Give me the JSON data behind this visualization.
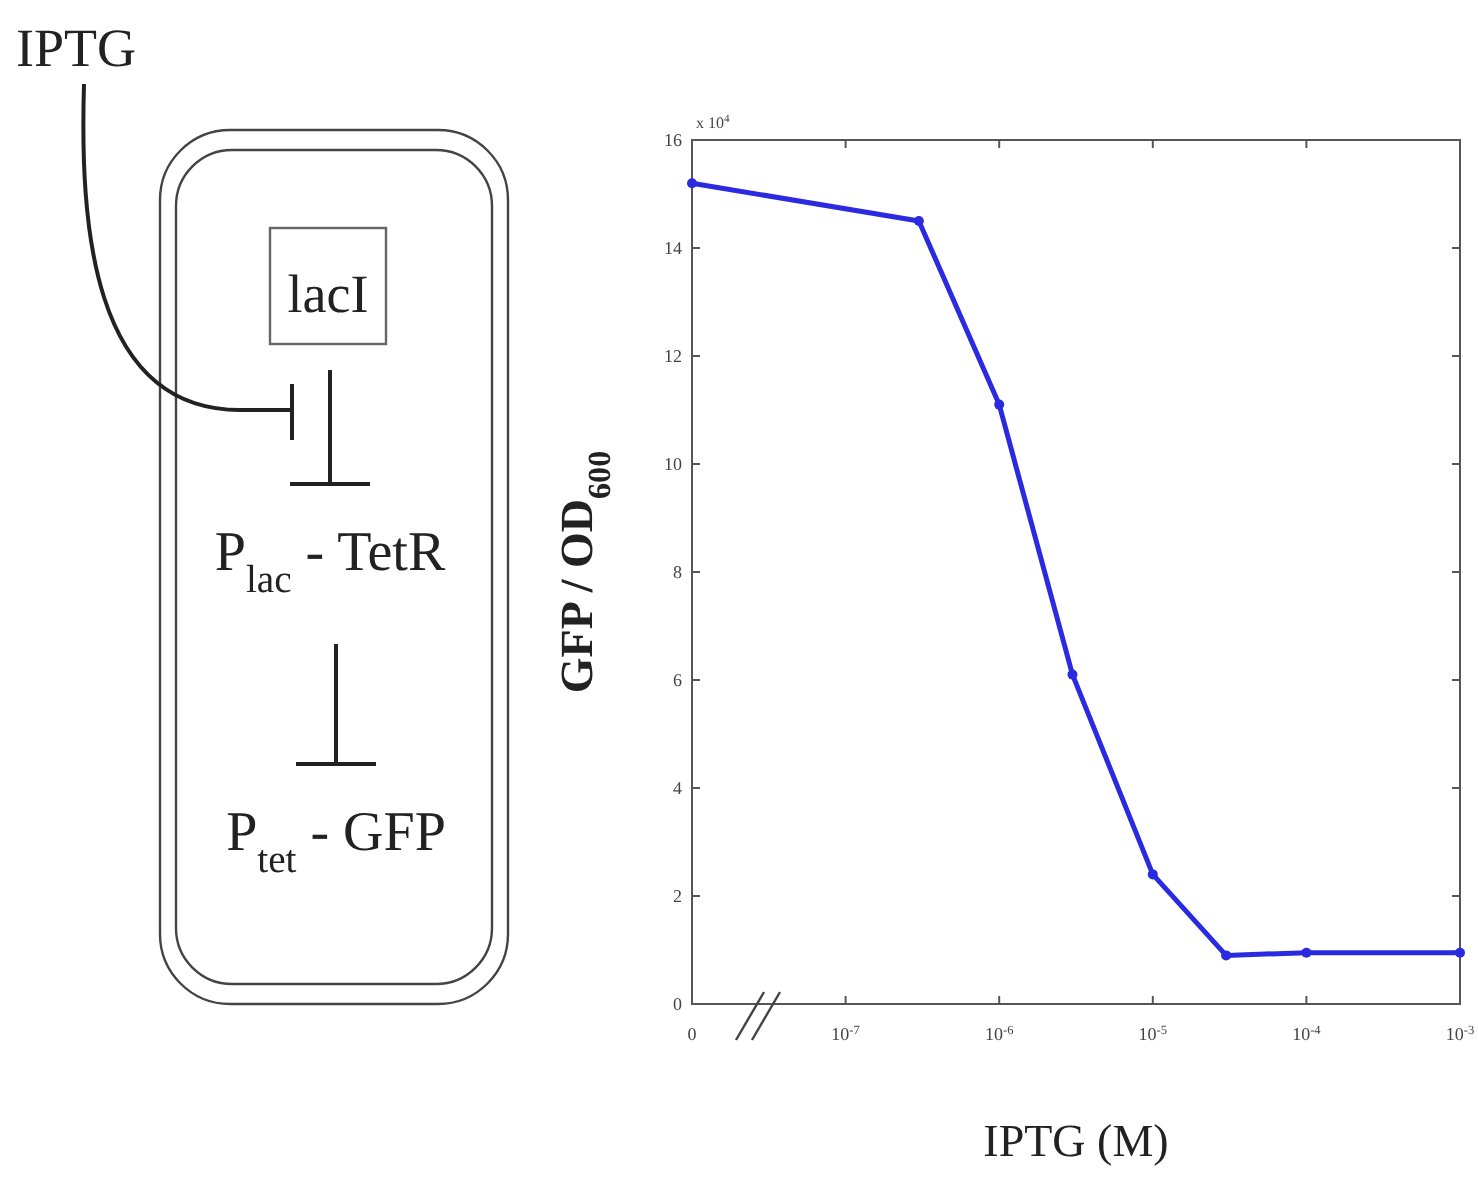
{
  "chart_data": {
    "type": "line",
    "xlabel": "IPTG (M)",
    "ylabel": "GFP / OD$_{600}$",
    "log": "x",
    "xlim": [
      1e-08,
      0.001
    ],
    "xticks": [
      {
        "value": 1e-08,
        "label": "0"
      },
      {
        "value": 1e-07,
        "label": "10$^{-7}$"
      },
      {
        "value": 1e-06,
        "label": "10$^{-6}$"
      },
      {
        "value": 1e-05,
        "label": "10$^{-5}$"
      },
      {
        "value": 0.0001,
        "label": "10$^{-4}$"
      },
      {
        "value": 0.001,
        "label": "10$^{-3}$"
      }
    ],
    "ylim": [
      0,
      16
    ],
    "yticks": [
      0,
      2,
      4,
      6,
      8,
      10,
      12,
      14,
      16
    ],
    "marker": "circle",
    "line_style": "solid",
    "grid": false,
    "series": [
      {
        "color": "#2a2ae0",
        "x": [
          1e-08,
          3e-07,
          1e-06,
          3e-06,
          1e-05,
          3e-05,
          0.0001,
          0.001
        ],
        "values": [
          15.2,
          14.5,
          11.1,
          6.1,
          2.4,
          0.9,
          0.95,
          0.95
        ]
      }
    ],
    "annotations": [
      "x 10$^{4}$",
      "IPTG",
      "lacI",
      "P$_{lac}$ - TetR",
      "P$_{tet}$ - GFP"
    ]
  }
}
